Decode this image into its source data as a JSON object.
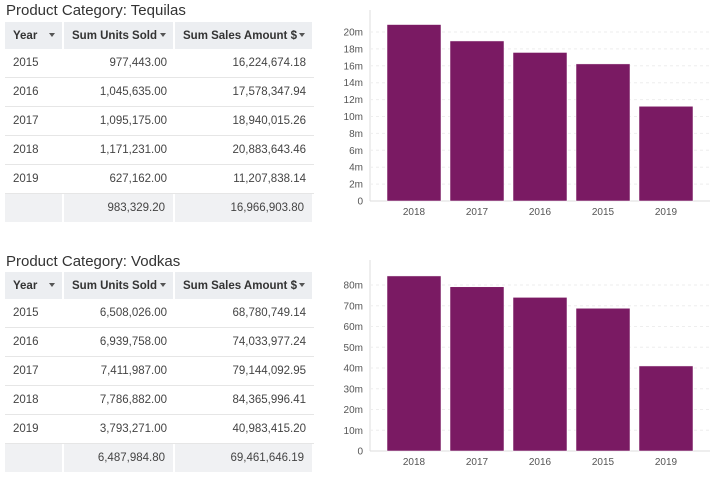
{
  "columns": [
    "Year",
    "Sum Units Sold",
    "Sum Sales Amount $"
  ],
  "sections": [
    {
      "title": "Product Category: Tequilas",
      "rows": [
        [
          "2015",
          "977,443.00",
          "16,224,674.18"
        ],
        [
          "2016",
          "1,045,635.00",
          "17,578,347.94"
        ],
        [
          "2017",
          "1,095,175.00",
          "18,940,015.26"
        ],
        [
          "2018",
          "1,171,231.00",
          "20,883,643.46"
        ],
        [
          "2019",
          "627,162.00",
          "11,207,838.14"
        ]
      ],
      "total": [
        "",
        "983,329.20",
        "16,966,903.80"
      ]
    },
    {
      "title": "Product Category: Vodkas",
      "rows": [
        [
          "2015",
          "6,508,026.00",
          "68,780,749.14"
        ],
        [
          "2016",
          "6,939,758.00",
          "74,033,977.24"
        ],
        [
          "2017",
          "7,411,987.00",
          "79,144,092.95"
        ],
        [
          "2018",
          "7,786,882.00",
          "84,365,996.41"
        ],
        [
          "2019",
          "3,793,271.00",
          "40,983,415.20"
        ]
      ],
      "total": [
        "",
        "6,487,984.80",
        "69,461,646.19"
      ]
    }
  ],
  "chart_data": [
    {
      "type": "bar",
      "title": "",
      "xlabel": "",
      "ylabel": "",
      "categories": [
        "2018",
        "2017",
        "2016",
        "2015",
        "2019"
      ],
      "values": [
        20883643.46,
        18940015.26,
        17578347.94,
        16224674.18,
        11207838.14
      ],
      "ylim": [
        0,
        20000000
      ],
      "yticks": [
        0,
        2000000,
        4000000,
        6000000,
        8000000,
        10000000,
        12000000,
        14000000,
        16000000,
        18000000,
        20000000
      ],
      "ytick_labels": [
        "0",
        "2m",
        "4m",
        "6m",
        "8m",
        "10m",
        "12m",
        "14m",
        "16m",
        "18m",
        "20m"
      ],
      "color": "#7a1a63",
      "grid": true
    },
    {
      "type": "bar",
      "title": "",
      "xlabel": "",
      "ylabel": "",
      "categories": [
        "2018",
        "2017",
        "2016",
        "2015",
        "2019"
      ],
      "values": [
        84365996.41,
        79144092.95,
        74033977.24,
        68780749.14,
        40983415.2
      ],
      "ylim": [
        0,
        80000000
      ],
      "yticks": [
        0,
        10000000,
        20000000,
        30000000,
        40000000,
        50000000,
        60000000,
        70000000,
        80000000
      ],
      "ytick_labels": [
        "0",
        "10m",
        "20m",
        "30m",
        "40m",
        "50m",
        "60m",
        "70m",
        "80m"
      ],
      "color": "#7a1a63",
      "grid": true
    }
  ]
}
